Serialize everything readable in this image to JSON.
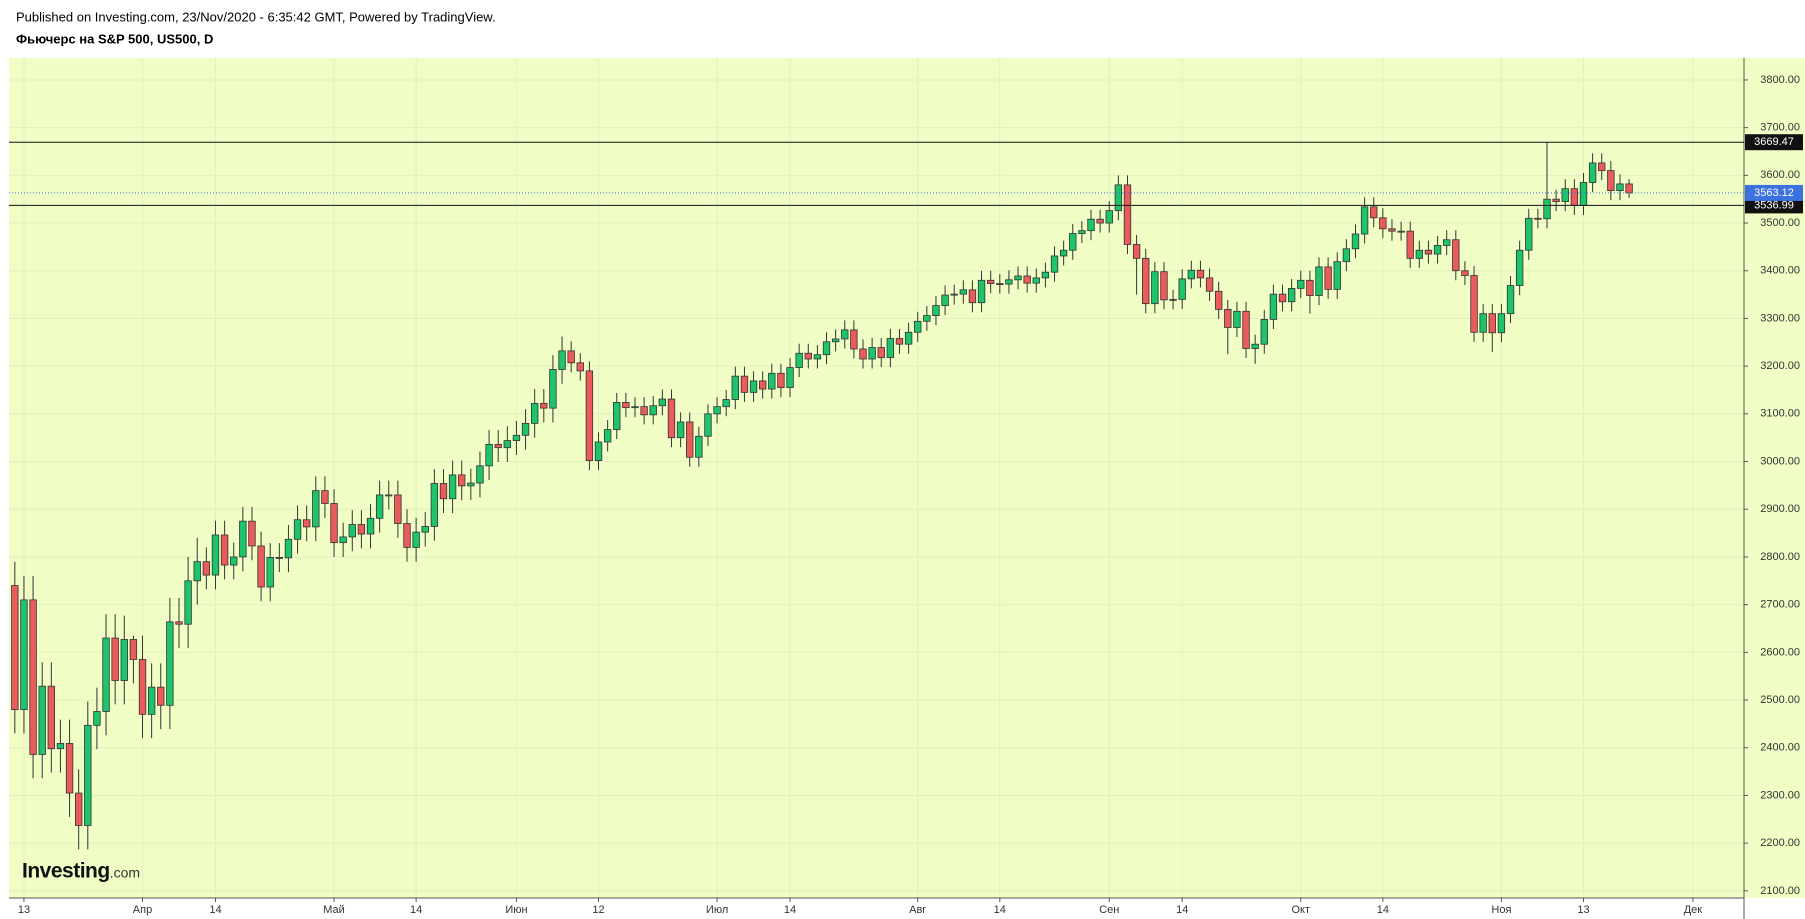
{
  "chart_data": {
    "type": "candlestick",
    "source": "Published on Investing.com, 23/Nov/2020 - 6:35:42 GMT, Powered by TradingView.",
    "title": "Фьючерс на S&P 500, US500, D",
    "logo": {
      "brand": "Investing",
      "suffix": ".com"
    },
    "up_color": "#1ec46c",
    "down_color": "#ea5b5b",
    "background": "#f0fec6",
    "grid": true,
    "open": [
      2740,
      2480,
      2710,
      2386,
      2529,
      2398,
      2409,
      2305,
      2237,
      2447,
      2476,
      2630,
      2541,
      2627,
      2585,
      2470,
      2527,
      2489,
      2664,
      2659,
      2750,
      2790,
      2762,
      2846,
      2783,
      2800,
      2875,
      2823,
      2737,
      2799,
      2798,
      2837,
      2878,
      2863,
      2939,
      2912,
      2830,
      2842,
      2868,
      2848,
      2881,
      2930,
      2930,
      2870,
      2820,
      2852,
      2864,
      2954,
      2922,
      2972,
      2949,
      2955,
      2991,
      3036,
      3029,
      3044,
      3055,
      3080,
      3122,
      3112,
      3193,
      3232,
      3207,
      3190,
      3002,
      3041,
      3067,
      3124,
      3113,
      3115,
      3098,
      3117,
      3131,
      3050,
      3083,
      3009,
      3053,
      3100,
      3115,
      3130,
      3179,
      3145,
      3169,
      3152,
      3185,
      3155,
      3197,
      3227,
      3215,
      3224,
      3251,
      3257,
      3276,
      3236,
      3215,
      3239,
      3218,
      3258,
      3246,
      3271,
      3294,
      3306,
      3327,
      3349,
      3351,
      3360,
      3333,
      3380,
      3373,
      3372,
      3381,
      3389,
      3374,
      3385,
      3397,
      3431,
      3443,
      3478,
      3484,
      3508,
      3500,
      3526,
      3580,
      3455,
      3426,
      3331,
      3398,
      3339,
      3340,
      3383,
      3401,
      3385,
      3357,
      3319,
      3281,
      3315,
      3237,
      3246,
      3298,
      3351,
      3335,
      3363,
      3380,
      3348,
      3408,
      3361,
      3419,
      3446,
      3477,
      3534,
      3511,
      3488,
      3483,
      3483,
      3426,
      3443,
      3435,
      3453,
      3465,
      3400,
      3390,
      3271,
      3310,
      3270,
      3310,
      3369,
      3443,
      3510,
      3509,
      3550,
      3545,
      3572,
      3537,
      3585,
      3626,
      3610,
      3568,
      3582
    ],
    "high": [
      2790,
      2760,
      2760,
      2579,
      2579,
      2459,
      2459,
      2355,
      2497,
      2526,
      2680,
      2680,
      2677,
      2635,
      2635,
      2577,
      2577,
      2714,
      2714,
      2800,
      2840,
      2820,
      2876,
      2876,
      2830,
      2905,
      2905,
      2853,
      2829,
      2829,
      2867,
      2908,
      2908,
      2969,
      2969,
      2942,
      2872,
      2898,
      2898,
      2911,
      2960,
      2960,
      2960,
      2900,
      2882,
      2894,
      2984,
      2984,
      3002,
      3002,
      2985,
      3021,
      3066,
      3066,
      3074,
      3085,
      3110,
      3152,
      3152,
      3223,
      3262,
      3252,
      3227,
      3210,
      3061,
      3087,
      3144,
      3144,
      3135,
      3135,
      3137,
      3151,
      3151,
      3103,
      3103,
      3073,
      3120,
      3135,
      3150,
      3199,
      3199,
      3189,
      3189,
      3205,
      3205,
      3217,
      3247,
      3247,
      3244,
      3271,
      3277,
      3296,
      3296,
      3256,
      3259,
      3259,
      3278,
      3278,
      3291,
      3314,
      3326,
      3347,
      3369,
      3371,
      3380,
      3380,
      3400,
      3400,
      3393,
      3401,
      3409,
      3409,
      3405,
      3417,
      3451,
      3463,
      3498,
      3504,
      3528,
      3528,
      3546,
      3600,
      3600,
      3475,
      3446,
      3418,
      3418,
      3360,
      3403,
      3421,
      3421,
      3405,
      3377,
      3339,
      3335,
      3335,
      3266,
      3318,
      3371,
      3371,
      3383,
      3400,
      3400,
      3428,
      3428,
      3439,
      3466,
      3497,
      3554,
      3554,
      3531,
      3508,
      3503,
      3503,
      3463,
      3463,
      3473,
      3485,
      3485,
      3420,
      3410,
      3330,
      3330,
      3330,
      3389,
      3463,
      3530,
      3530,
      3669.47,
      3570,
      3592,
      3592,
      3605,
      3646,
      3646,
      3630,
      3602,
      3592
    ],
    "low": [
      2430,
      2430,
      2336,
      2336,
      2348,
      2348,
      2255,
      2187,
      2187,
      2397,
      2426,
      2491,
      2491,
      2535,
      2420,
      2420,
      2439,
      2439,
      2609,
      2609,
      2700,
      2732,
      2732,
      2753,
      2753,
      2770,
      2793,
      2707,
      2707,
      2768,
      2768,
      2807,
      2833,
      2833,
      2882,
      2800,
      2800,
      2812,
      2818,
      2818,
      2851,
      2900,
      2840,
      2790,
      2790,
      2822,
      2834,
      2892,
      2892,
      2919,
      2919,
      2925,
      2961,
      2999,
      2999,
      3014,
      3025,
      3050,
      3082,
      3082,
      3163,
      3187,
      3170,
      2982,
      2982,
      3021,
      3047,
      3093,
      3093,
      3078,
      3078,
      3097,
      3030,
      3030,
      2989,
      2989,
      3033,
      3080,
      3095,
      3110,
      3125,
      3125,
      3132,
      3132,
      3135,
      3135,
      3177,
      3195,
      3195,
      3204,
      3231,
      3237,
      3216,
      3195,
      3195,
      3198,
      3198,
      3226,
      3226,
      3251,
      3274,
      3286,
      3307,
      3329,
      3331,
      3313,
      3313,
      3353,
      3352,
      3352,
      3361,
      3354,
      3354,
      3365,
      3377,
      3411,
      3423,
      3458,
      3464,
      3480,
      3480,
      3506,
      3435,
      3350,
      3311,
      3311,
      3319,
      3319,
      3320,
      3363,
      3365,
      3337,
      3299,
      3225,
      3261,
      3217,
      3205,
      3226,
      3278,
      3315,
      3315,
      3343,
      3310,
      3328,
      3341,
      3341,
      3399,
      3426,
      3457,
      3491,
      3468,
      3463,
      3463,
      3406,
      3406,
      3415,
      3415,
      3433,
      3380,
      3370,
      3251,
      3251,
      3230,
      3250,
      3290,
      3349,
      3423,
      3489,
      3489,
      3525,
      3525,
      3517,
      3517,
      3565,
      3590,
      3548,
      3548,
      3553
    ],
    "close": [
      2480,
      2710,
      2386,
      2529,
      2398,
      2409,
      2305,
      2237,
      2447,
      2476,
      2630,
      2541,
      2627,
      2585,
      2470,
      2527,
      2489,
      2664,
      2659,
      2750,
      2790,
      2762,
      2846,
      2783,
      2800,
      2875,
      2823,
      2737,
      2799,
      2798,
      2837,
      2878,
      2863,
      2939,
      2912,
      2830,
      2842,
      2868,
      2848,
      2881,
      2930,
      2930,
      2870,
      2820,
      2852,
      2864,
      2954,
      2922,
      2972,
      2949,
      2955,
      2991,
      3036,
      3029,
      3044,
      3055,
      3080,
      3122,
      3112,
      3193,
      3232,
      3207,
      3190,
      3002,
      3041,
      3067,
      3124,
      3113,
      3115,
      3098,
      3117,
      3131,
      3050,
      3083,
      3009,
      3053,
      3100,
      3115,
      3130,
      3179,
      3145,
      3169,
      3152,
      3185,
      3155,
      3197,
      3227,
      3215,
      3224,
      3251,
      3257,
      3276,
      3236,
      3215,
      3239,
      3218,
      3258,
      3246,
      3271,
      3294,
      3306,
      3327,
      3349,
      3351,
      3360,
      3333,
      3380,
      3373,
      3372,
      3381,
      3389,
      3374,
      3385,
      3397,
      3431,
      3443,
      3478,
      3484,
      3508,
      3500,
      3526,
      3580,
      3455,
      3426,
      3331,
      3398,
      3339,
      3340,
      3383,
      3401,
      3385,
      3357,
      3319,
      3281,
      3315,
      3237,
      3246,
      3298,
      3351,
      3335,
      3363,
      3380,
      3348,
      3408,
      3361,
      3419,
      3446,
      3477,
      3534,
      3511,
      3488,
      3483,
      3483,
      3426,
      3443,
      3435,
      3453,
      3465,
      3400,
      3390,
      3271,
      3310,
      3270,
      3310,
      3369,
      3443,
      3510,
      3509,
      3550,
      3545,
      3572,
      3537,
      3585,
      3626,
      3610,
      3568,
      3582,
      3563.12
    ],
    "xlim": [
      -0.64,
      189.6
    ],
    "xticks": [
      {
        "value": 1,
        "label": "13"
      },
      {
        "value": 14,
        "label": "Апр"
      },
      {
        "value": 22,
        "label": "14"
      },
      {
        "value": 35,
        "label": "Май"
      },
      {
        "value": 44,
        "label": "14"
      },
      {
        "value": 55,
        "label": "Июн"
      },
      {
        "value": 64,
        "label": "12"
      },
      {
        "value": 77,
        "label": "Июл"
      },
      {
        "value": 85,
        "label": "14"
      },
      {
        "value": 99,
        "label": "Авг"
      },
      {
        "value": 108,
        "label": "14"
      },
      {
        "value": 120,
        "label": "Сен"
      },
      {
        "value": 128,
        "label": "14"
      },
      {
        "value": 141,
        "label": "Окт"
      },
      {
        "value": 150,
        "label": "14"
      },
      {
        "value": 163,
        "label": "Ноя"
      },
      {
        "value": 172,
        "label": "13"
      },
      {
        "value": 184,
        "label": "Дек"
      }
    ],
    "ylim": [
      2085,
      3846
    ],
    "yticks": [
      {
        "value": 2100,
        "label": "2100.00"
      },
      {
        "value": 2200,
        "label": "2200.00"
      },
      {
        "value": 2300,
        "label": "2300.00"
      },
      {
        "value": 2400,
        "label": "2400.00"
      },
      {
        "value": 2500,
        "label": "2500.00"
      },
      {
        "value": 2600,
        "label": "2600.00"
      },
      {
        "value": 2700,
        "label": "2700.00"
      },
      {
        "value": 2800,
        "label": "2800.00"
      },
      {
        "value": 2900,
        "label": "2900.00"
      },
      {
        "value": 3000,
        "label": "3000.00"
      },
      {
        "value": 3100,
        "label": "3100.00"
      },
      {
        "value": 3200,
        "label": "3200.00"
      },
      {
        "value": 3300,
        "label": "3300.00"
      },
      {
        "value": 3400,
        "label": "3400.00"
      },
      {
        "value": 3500,
        "label": "3500.00"
      },
      {
        "value": 3600,
        "label": "3600.00"
      },
      {
        "value": 3700,
        "label": "3700.00"
      },
      {
        "value": 3800,
        "label": "3800.00"
      }
    ],
    "hlines": [
      3669.47,
      3536.99
    ],
    "last_price": 3563.12,
    "last_color": "#3b72e0"
  }
}
